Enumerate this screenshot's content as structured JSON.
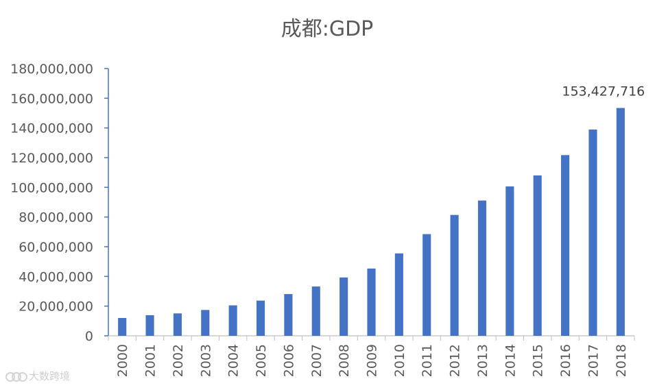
{
  "chart_data": {
    "type": "bar",
    "title": "成都:GDP",
    "xlabel": "",
    "ylabel": "",
    "categories": [
      "2000",
      "2001",
      "2002",
      "2003",
      "2004",
      "2005",
      "2006",
      "2007",
      "2008",
      "2009",
      "2010",
      "2011",
      "2012",
      "2013",
      "2014",
      "2015",
      "2016",
      "2017",
      "2018"
    ],
    "values": [
      12000000,
      13900000,
      15100000,
      17400000,
      20500000,
      23700000,
      28100000,
      33200000,
      39300000,
      45300000,
      55500000,
      68500000,
      81400000,
      91100000,
      100600000,
      108000000,
      121700000,
      138900000,
      153427716
    ],
    "ylim": [
      0,
      180000000
    ],
    "yticks": [
      "0",
      "20,000,000",
      "40,000,000",
      "60,000,000",
      "80,000,000",
      "100,000,000",
      "120,000,000",
      "140,000,000",
      "160,000,000",
      "180,000,000"
    ],
    "data_label": "153,427,716",
    "bar_color": "#4472c4",
    "grid": false,
    "legend": "none"
  },
  "watermark": {
    "text": "大数跨境"
  }
}
